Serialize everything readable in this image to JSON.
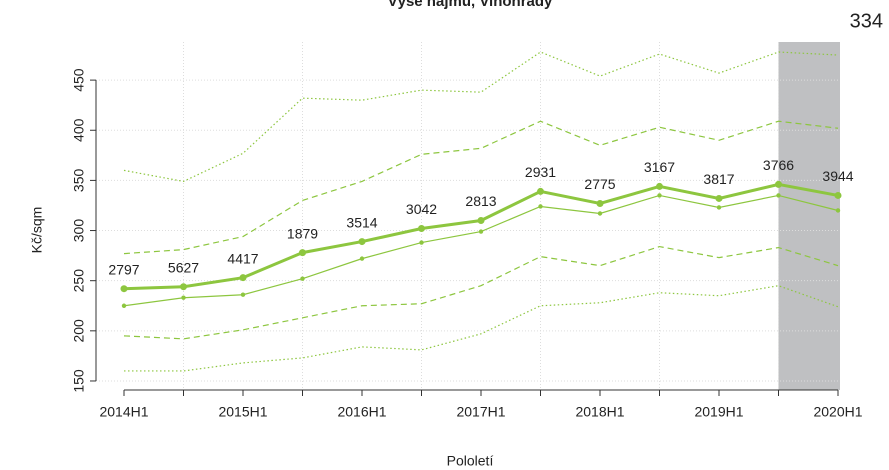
{
  "chart_data": {
    "type": "line",
    "title": "Výše nájmů, Vinohrady",
    "corner_text": "334",
    "xlabel": "Pololetí",
    "ylabel": "Kč/sqm",
    "categories": [
      "2014H1",
      null,
      "2015H1",
      null,
      "2016H1",
      null,
      "2017H1",
      null,
      "2018H1",
      null,
      "2019H1",
      null,
      "2020H1"
    ],
    "series": [
      {
        "color": "#8dc63f",
        "style": "dotted",
        "width": 1.2,
        "values": [
          360,
          349,
          377,
          432,
          430,
          440,
          438,
          478,
          454,
          476,
          457,
          478,
          475
        ]
      },
      {
        "color": "#8dc63f",
        "style": "dashed",
        "width": 1.2,
        "values": [
          277,
          281,
          294,
          330,
          349,
          376,
          382,
          409,
          385,
          403,
          390,
          409,
          402
        ]
      },
      {
        "color": "#8dc63f",
        "style": "solid",
        "width": 3,
        "points": true,
        "values": [
          242,
          244,
          253,
          278,
          289,
          302,
          310,
          339,
          327,
          344,
          332,
          346,
          335
        ]
      },
      {
        "color": "#8dc63f",
        "style": "solid",
        "width": 1.2,
        "points": true,
        "values": [
          225,
          233,
          236,
          252,
          272,
          288,
          299,
          324,
          317,
          335,
          323,
          335,
          320
        ]
      },
      {
        "color": "#8dc63f",
        "style": "dashed",
        "width": 1.2,
        "values": [
          195,
          192,
          201,
          213,
          225,
          227,
          245,
          274,
          265,
          284,
          273,
          283,
          265
        ]
      },
      {
        "color": "#8dc63f",
        "style": "dotted",
        "width": 1.2,
        "values": [
          160,
          160,
          168,
          173,
          184,
          181,
          197,
          225,
          228,
          238,
          235,
          245,
          224
        ]
      }
    ],
    "point_labels": [
      2797,
      5627,
      4417,
      1879,
      3514,
      3042,
      2813,
      2931,
      2775,
      3167,
      3817,
      3766,
      3944
    ],
    "ylim": [
      141,
      488
    ],
    "yticks": [
      150,
      200,
      250,
      300,
      350,
      400,
      450
    ],
    "grid": true
  }
}
